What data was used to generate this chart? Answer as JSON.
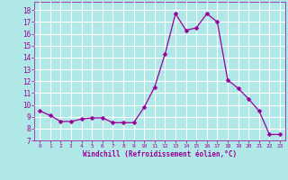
{
  "x": [
    0,
    1,
    2,
    3,
    4,
    5,
    6,
    7,
    8,
    9,
    10,
    11,
    12,
    13,
    14,
    15,
    16,
    17,
    18,
    19,
    20,
    21,
    22,
    23
  ],
  "y": [
    9.5,
    9.1,
    8.6,
    8.6,
    8.8,
    8.9,
    8.9,
    8.5,
    8.5,
    8.5,
    9.8,
    11.5,
    14.3,
    17.7,
    16.3,
    16.5,
    17.7,
    17.0,
    12.1,
    11.4,
    10.5,
    9.5,
    7.5,
    7.5
  ],
  "line_color": "#990099",
  "marker": "D",
  "marker_size": 2.5,
  "bg_color": "#b0e8e8",
  "grid_color": "#ffffff",
  "xlabel": "Windchill (Refroidissement éolien,°C)",
  "xlabel_color": "#990099",
  "tick_color": "#990099",
  "ylabel_ticks": [
    7,
    8,
    9,
    10,
    11,
    12,
    13,
    14,
    15,
    16,
    17,
    18
  ],
  "xlim": [
    -0.5,
    23.5
  ],
  "ylim": [
    7,
    18.7
  ],
  "xticks": [
    0,
    1,
    2,
    3,
    4,
    5,
    6,
    7,
    8,
    9,
    10,
    11,
    12,
    13,
    14,
    15,
    16,
    17,
    18,
    19,
    20,
    21,
    22,
    23
  ]
}
